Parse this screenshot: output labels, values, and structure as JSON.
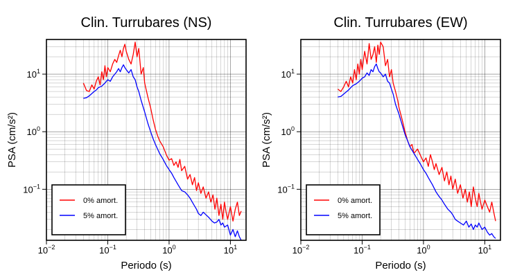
{
  "chart_data": [
    {
      "type": "line",
      "title": "Clin. Turrubares (NS)",
      "xlabel": "Periodo (s)",
      "ylabel": "PSA (cm/s²)",
      "xscale": "log",
      "yscale": "log",
      "xlim": [
        0.01,
        18
      ],
      "ylim": [
        0.013,
        40
      ],
      "grid": true,
      "legend_position": "bottom-left",
      "xticks": [
        {
          "v": 0.01,
          "b": "10",
          "e": "−2"
        },
        {
          "v": 0.1,
          "b": "10",
          "e": "−1"
        },
        {
          "v": 1,
          "b": "10",
          "e": "0"
        },
        {
          "v": 10,
          "b": "10",
          "e": "1"
        }
      ],
      "yticks": [
        {
          "v": 0.1,
          "b": "10",
          "e": "−1"
        },
        {
          "v": 1,
          "b": "10",
          "e": "0"
        },
        {
          "v": 10,
          "b": "10",
          "e": "1"
        }
      ],
      "series": [
        {
          "name": "0% amort.",
          "color": "#ff0000",
          "x": [
            0.04,
            0.045,
            0.05,
            0.055,
            0.06,
            0.065,
            0.07,
            0.075,
            0.08,
            0.085,
            0.09,
            0.095,
            0.1,
            0.11,
            0.12,
            0.13,
            0.14,
            0.15,
            0.16,
            0.17,
            0.18,
            0.19,
            0.2,
            0.22,
            0.24,
            0.26,
            0.28,
            0.3,
            0.32,
            0.35,
            0.38,
            0.4,
            0.45,
            0.5,
            0.55,
            0.6,
            0.65,
            0.7,
            0.8,
            0.9,
            1.0,
            1.1,
            1.2,
            1.3,
            1.4,
            1.5,
            1.6,
            1.8,
            2.0,
            2.2,
            2.4,
            2.6,
            2.8,
            3.0,
            3.3,
            3.6,
            4.0,
            4.4,
            4.8,
            5.2,
            5.6,
            6.0,
            6.5,
            7.0,
            7.5,
            8.0,
            8.5,
            9.0,
            10,
            11,
            12,
            13,
            14,
            15
          ],
          "y": [
            7,
            5.2,
            5.0,
            6.5,
            5.5,
            7.5,
            9,
            6.5,
            11,
            8,
            14,
            9,
            13,
            11,
            15,
            18,
            16,
            21,
            26,
            20,
            28,
            33,
            25,
            18,
            15,
            22,
            36,
            20,
            28,
            10,
            13,
            7,
            4,
            2.6,
            1.6,
            1.1,
            0.85,
            0.7,
            0.55,
            0.4,
            0.32,
            0.34,
            0.26,
            0.3,
            0.24,
            0.33,
            0.21,
            0.25,
            0.15,
            0.18,
            0.12,
            0.16,
            0.095,
            0.13,
            0.085,
            0.11,
            0.07,
            0.09,
            0.06,
            0.08,
            0.045,
            0.07,
            0.035,
            0.055,
            0.03,
            0.06,
            0.04,
            0.03,
            0.05,
            0.028,
            0.045,
            0.06,
            0.035,
            0.042
          ]
        },
        {
          "name": "5% amort.",
          "color": "#0000ff",
          "x": [
            0.04,
            0.045,
            0.05,
            0.055,
            0.06,
            0.065,
            0.07,
            0.08,
            0.09,
            0.1,
            0.11,
            0.12,
            0.13,
            0.14,
            0.15,
            0.16,
            0.17,
            0.18,
            0.19,
            0.2,
            0.22,
            0.24,
            0.26,
            0.28,
            0.3,
            0.32,
            0.35,
            0.4,
            0.45,
            0.5,
            0.55,
            0.6,
            0.7,
            0.8,
            0.9,
            1.0,
            1.1,
            1.2,
            1.4,
            1.6,
            1.8,
            2.0,
            2.2,
            2.5,
            2.8,
            3.0,
            3.3,
            3.6,
            4.0,
            4.5,
            5.0,
            5.5,
            6.0,
            6.5,
            7.0,
            7.5,
            8.0,
            9.0,
            10,
            11,
            12,
            13,
            14,
            15
          ],
          "y": [
            3.8,
            3.9,
            4.2,
            4.6,
            5.0,
            5.3,
            5.8,
            6.2,
            7.0,
            8.0,
            7.5,
            9.0,
            10.0,
            11.0,
            12.5,
            11.0,
            13.0,
            14.5,
            13.0,
            12.0,
            10.5,
            12.0,
            9.0,
            8.0,
            6.0,
            5.0,
            3.5,
            2.2,
            1.4,
            1.0,
            0.75,
            0.6,
            0.42,
            0.33,
            0.26,
            0.22,
            0.19,
            0.16,
            0.12,
            0.095,
            0.09,
            0.08,
            0.07,
            0.055,
            0.045,
            0.038,
            0.035,
            0.04,
            0.036,
            0.032,
            0.028,
            0.026,
            0.027,
            0.03,
            0.024,
            0.026,
            0.022,
            0.024,
            0.016,
            0.02,
            0.015,
            0.019,
            0.015,
            0.013
          ]
        }
      ]
    },
    {
      "type": "line",
      "title": "Clin. Turrubares (EW)",
      "xlabel": "Periodo (s)",
      "ylabel": "PSA (cm/s²)",
      "xscale": "log",
      "yscale": "log",
      "xlim": [
        0.01,
        18
      ],
      "ylim": [
        0.013,
        40
      ],
      "grid": true,
      "legend_position": "bottom-left",
      "xticks": [
        {
          "v": 0.01,
          "b": "10",
          "e": "−2"
        },
        {
          "v": 0.1,
          "b": "10",
          "e": "−1"
        },
        {
          "v": 1,
          "b": "10",
          "e": "0"
        },
        {
          "v": 10,
          "b": "10",
          "e": "1"
        }
      ],
      "yticks": [
        {
          "v": 0.1,
          "b": "10",
          "e": "−1"
        },
        {
          "v": 1,
          "b": "10",
          "e": "0"
        },
        {
          "v": 10,
          "b": "10",
          "e": "1"
        }
      ],
      "series": [
        {
          "name": "0% amort.",
          "color": "#ff0000",
          "x": [
            0.04,
            0.045,
            0.05,
            0.055,
            0.06,
            0.065,
            0.07,
            0.075,
            0.08,
            0.085,
            0.09,
            0.095,
            0.1,
            0.11,
            0.12,
            0.13,
            0.14,
            0.15,
            0.16,
            0.17,
            0.18,
            0.19,
            0.2,
            0.22,
            0.24,
            0.26,
            0.28,
            0.3,
            0.32,
            0.35,
            0.38,
            0.4,
            0.45,
            0.5,
            0.55,
            0.6,
            0.65,
            0.7,
            0.8,
            0.9,
            1.0,
            1.1,
            1.2,
            1.3,
            1.4,
            1.5,
            1.6,
            1.8,
            2.0,
            2.2,
            2.4,
            2.6,
            2.8,
            3.0,
            3.3,
            3.6,
            4.0,
            4.4,
            4.8,
            5.2,
            5.6,
            6.0,
            6.5,
            7.0,
            7.5,
            8.0,
            8.5,
            9.0,
            10,
            11,
            12,
            13,
            14,
            15
          ],
          "y": [
            5.5,
            5.0,
            6.0,
            7.5,
            6.0,
            9,
            7,
            12,
            8,
            15,
            10,
            18,
            12,
            25,
            15,
            34,
            18,
            22,
            30,
            16,
            32,
            22,
            36,
            30,
            14,
            18,
            9,
            12,
            7,
            5,
            3.5,
            2.6,
            1.6,
            1.0,
            0.7,
            0.55,
            0.6,
            0.42,
            0.5,
            0.38,
            0.3,
            0.35,
            0.25,
            0.4,
            0.3,
            0.22,
            0.28,
            0.18,
            0.24,
            0.14,
            0.2,
            0.12,
            0.17,
            0.1,
            0.15,
            0.085,
            0.12,
            0.07,
            0.1,
            0.06,
            0.09,
            0.05,
            0.11,
            0.07,
            0.05,
            0.085,
            0.06,
            0.045,
            0.065,
            0.05,
            0.04,
            0.06,
            0.04,
            0.028
          ]
        },
        {
          "name": "5% amort.",
          "color": "#0000ff",
          "x": [
            0.04,
            0.045,
            0.05,
            0.055,
            0.06,
            0.065,
            0.07,
            0.08,
            0.09,
            0.1,
            0.11,
            0.12,
            0.13,
            0.14,
            0.15,
            0.16,
            0.17,
            0.18,
            0.19,
            0.2,
            0.22,
            0.24,
            0.26,
            0.28,
            0.3,
            0.32,
            0.35,
            0.4,
            0.45,
            0.5,
            0.55,
            0.6,
            0.7,
            0.8,
            0.9,
            1.0,
            1.1,
            1.2,
            1.4,
            1.6,
            1.8,
            2.0,
            2.2,
            2.5,
            2.8,
            3.0,
            3.3,
            3.6,
            4.0,
            4.5,
            5.0,
            5.5,
            6.0,
            6.5,
            7.0,
            7.5,
            8.0,
            9.0,
            10,
            11,
            12,
            13,
            14,
            15
          ],
          "y": [
            4.0,
            4.1,
            4.5,
            4.9,
            5.3,
            5.8,
            6.3,
            6.8,
            7.5,
            8.5,
            9.0,
            10.5,
            9.5,
            12.0,
            11.0,
            13.5,
            15.0,
            12.5,
            11.0,
            10.5,
            9.0,
            10.0,
            7.5,
            7.0,
            5.5,
            4.5,
            3.0,
            2.0,
            1.3,
            0.9,
            0.7,
            0.55,
            0.42,
            0.33,
            0.27,
            0.22,
            0.19,
            0.16,
            0.12,
            0.09,
            0.075,
            0.065,
            0.055,
            0.045,
            0.04,
            0.036,
            0.03,
            0.028,
            0.026,
            0.024,
            0.028,
            0.022,
            0.025,
            0.02,
            0.024,
            0.022,
            0.026,
            0.02,
            0.022,
            0.018,
            0.016,
            0.017,
            0.015,
            0.014
          ]
        }
      ]
    }
  ]
}
